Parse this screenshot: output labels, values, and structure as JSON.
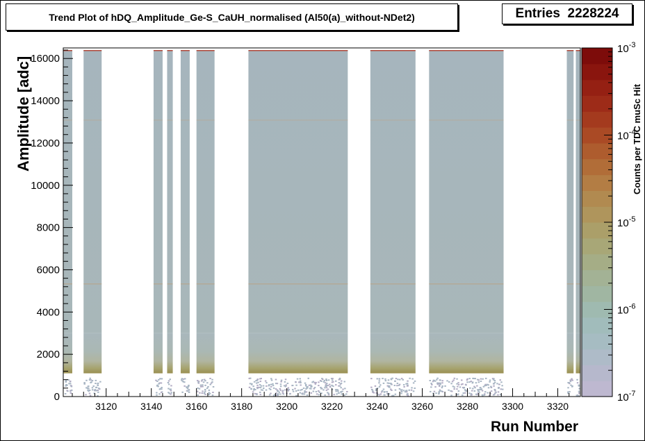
{
  "stats": {
    "entries_label": "Entries",
    "entries_value": "2228224"
  },
  "chart_data": {
    "type": "heatmap",
    "title": "Trend Plot of hDQ_Amplitude_Ge-S_CaUH_normalised (Al50(a)_without-NDet2)",
    "xlabel": "Run Number",
    "ylabel": "Amplitude [adc]",
    "zlabel": "Counts per TDC muSc Hit",
    "xlim": [
      3101,
      3330
    ],
    "ylim": [
      0,
      16500
    ],
    "xticks": [
      3120,
      3140,
      3160,
      3180,
      3200,
      3220,
      3240,
      3260,
      3280,
      3300,
      3320
    ],
    "xtick_labels": [
      "3120",
      "3140",
      "3160",
      "3180",
      "3200",
      "3220",
      "3240",
      "3260",
      "3280",
      "3300",
      "3320"
    ],
    "yticks": [
      0,
      2000,
      4000,
      6000,
      8000,
      10000,
      12000,
      14000,
      16000
    ],
    "ytick_labels": [
      "0",
      "2000",
      "4000",
      "6000",
      "8000",
      "10000",
      "12000",
      "14000",
      "16000"
    ],
    "zscale": "log",
    "zlim": [
      1e-07,
      0.001
    ],
    "z_tick_labels": [
      {
        "base": "10",
        "exp": "-7",
        "value": 1e-07
      },
      {
        "base": "10",
        "exp": "-6",
        "value": 1e-06
      },
      {
        "base": "10",
        "exp": "-5",
        "value": 1e-05
      },
      {
        "base": "10",
        "exp": "-4",
        "value": 0.0001
      },
      {
        "base": "10",
        "exp": "-3",
        "value": 0.001
      }
    ],
    "run_ranges": [
      {
        "start": 3101,
        "end": 3105
      },
      {
        "start": 3110,
        "end": 3118
      },
      {
        "start": 3141,
        "end": 3145
      },
      {
        "start": 3147,
        "end": 3149.5
      },
      {
        "start": 3153,
        "end": 3157
      },
      {
        "start": 3160,
        "end": 3168
      },
      {
        "start": 3183,
        "end": 3227
      },
      {
        "start": 3237,
        "end": 3257
      },
      {
        "start": 3263,
        "end": 3296
      },
      {
        "start": 3324,
        "end": 3327
      },
      {
        "start": 3328,
        "end": 3330
      }
    ],
    "note": "Data present between ~1100 and ~16400 adc with higher density below ~3000 adc; sparse hits below ~1000 adc; thin lines near 5300 and 13100 adc."
  }
}
